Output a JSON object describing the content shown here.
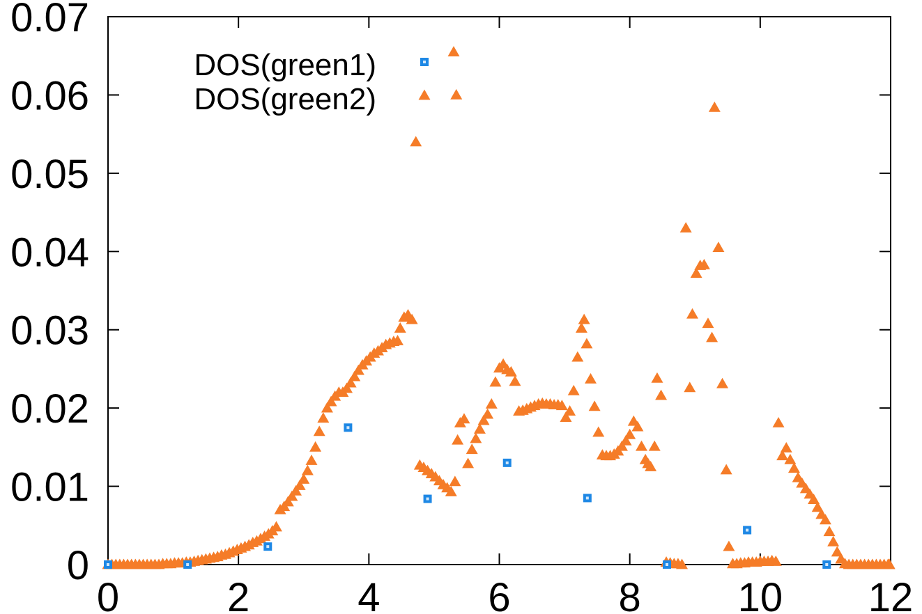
{
  "chart_data": {
    "type": "scatter",
    "title": "",
    "xlabel": "",
    "ylabel": "",
    "xlim": [
      0,
      12
    ],
    "ylim": [
      0,
      0.07
    ],
    "x_ticks": [
      "0",
      "2",
      "4",
      "6",
      "8",
      "10",
      "12"
    ],
    "y_ticks": [
      "0",
      "0.01",
      "0.02",
      "0.03",
      "0.04",
      "0.05",
      "0.06",
      "0.07"
    ],
    "x_tick_values": [
      0,
      2,
      4,
      6,
      8,
      10,
      12
    ],
    "y_tick_values": [
      0,
      0.01,
      0.02,
      0.03,
      0.04,
      0.05,
      0.06,
      0.07
    ],
    "grid": false,
    "legend_position": "top-left",
    "series": [
      {
        "name": "DOS(green1)",
        "marker": "square",
        "color": "#1e88e5",
        "points": [
          [
            0.0,
            0.0
          ],
          [
            1.22,
            0.0
          ],
          [
            2.45,
            0.0023
          ],
          [
            3.68,
            0.0175
          ],
          [
            4.9,
            0.0084
          ],
          [
            6.12,
            0.013
          ],
          [
            7.35,
            0.0085
          ],
          [
            8.57,
            0.0
          ],
          [
            9.8,
            0.0044
          ],
          [
            11.02,
            0.0
          ]
        ]
      },
      {
        "name": "DOS(green2)",
        "marker": "triangle",
        "color": "#f57c28",
        "points": [
          [
            0.0,
            0.0
          ],
          [
            0.06,
            0.0
          ],
          [
            0.12,
            0.0
          ],
          [
            0.18,
            0.0
          ],
          [
            0.24,
            0.0
          ],
          [
            0.3,
            0.0
          ],
          [
            0.36,
            0.0
          ],
          [
            0.42,
            0.0
          ],
          [
            0.48,
            0.0
          ],
          [
            0.54,
            0.0
          ],
          [
            0.6,
            0.0
          ],
          [
            0.66,
            0.0
          ],
          [
            0.72,
            0.0
          ],
          [
            0.78,
            0.0
          ],
          [
            0.84,
            0.0001
          ],
          [
            0.9,
            0.0001
          ],
          [
            0.96,
            0.0001
          ],
          [
            1.02,
            0.0002
          ],
          [
            1.08,
            0.0002
          ],
          [
            1.14,
            0.0002
          ],
          [
            1.2,
            0.0003
          ],
          [
            1.26,
            0.0003
          ],
          [
            1.32,
            0.0004
          ],
          [
            1.38,
            0.0005
          ],
          [
            1.44,
            0.0006
          ],
          [
            1.5,
            0.0007
          ],
          [
            1.56,
            0.0008
          ],
          [
            1.62,
            0.0009
          ],
          [
            1.68,
            0.001
          ],
          [
            1.74,
            0.0012
          ],
          [
            1.8,
            0.0013
          ],
          [
            1.86,
            0.0015
          ],
          [
            1.92,
            0.0017
          ],
          [
            1.98,
            0.0019
          ],
          [
            2.04,
            0.0021
          ],
          [
            2.1,
            0.0023
          ],
          [
            2.16,
            0.0025
          ],
          [
            2.22,
            0.0028
          ],
          [
            2.28,
            0.003
          ],
          [
            2.34,
            0.0033
          ],
          [
            2.4,
            0.0036
          ],
          [
            2.46,
            0.0039
          ],
          [
            2.52,
            0.0043
          ],
          [
            2.58,
            0.0048
          ],
          [
            2.64,
            0.007
          ],
          [
            2.7,
            0.0074
          ],
          [
            2.76,
            0.008
          ],
          [
            2.82,
            0.0087
          ],
          [
            2.88,
            0.0094
          ],
          [
            2.94,
            0.0101
          ],
          [
            3.0,
            0.0109
          ],
          [
            3.06,
            0.012
          ],
          [
            3.12,
            0.0133
          ],
          [
            3.18,
            0.015
          ],
          [
            3.24,
            0.017
          ],
          [
            3.3,
            0.0187
          ],
          [
            3.36,
            0.02
          ],
          [
            3.42,
            0.0208
          ],
          [
            3.48,
            0.0215
          ],
          [
            3.54,
            0.022
          ],
          [
            3.6,
            0.022
          ],
          [
            3.66,
            0.0225
          ],
          [
            3.72,
            0.0232
          ],
          [
            3.78,
            0.024
          ],
          [
            3.84,
            0.0248
          ],
          [
            3.9,
            0.0255
          ],
          [
            3.96,
            0.026
          ],
          [
            4.02,
            0.0265
          ],
          [
            4.08,
            0.027
          ],
          [
            4.14,
            0.0273
          ],
          [
            4.2,
            0.0277
          ],
          [
            4.26,
            0.0281
          ],
          [
            4.32,
            0.0283
          ],
          [
            4.38,
            0.0285
          ],
          [
            4.44,
            0.0286
          ],
          [
            4.48,
            0.0302
          ],
          [
            4.54,
            0.0316
          ],
          [
            4.6,
            0.0319
          ],
          [
            4.66,
            0.0313
          ],
          [
            4.72,
            0.054
          ],
          [
            4.78,
            0.0127
          ],
          [
            4.84,
            0.0124
          ],
          [
            4.9,
            0.012
          ],
          [
            4.96,
            0.0116
          ],
          [
            5.02,
            0.0112
          ],
          [
            5.08,
            0.0107
          ],
          [
            5.14,
            0.0102
          ],
          [
            5.2,
            0.0098
          ],
          [
            5.26,
            0.0093
          ],
          [
            5.3,
            0.0655
          ],
          [
            5.34,
            0.06
          ],
          [
            5.32,
            0.0106
          ],
          [
            5.36,
            0.0159
          ],
          [
            5.4,
            0.0181
          ],
          [
            5.46,
            0.0186
          ],
          [
            5.52,
            0.0129
          ],
          [
            5.58,
            0.0147
          ],
          [
            5.64,
            0.0161
          ],
          [
            5.7,
            0.0173
          ],
          [
            5.76,
            0.0184
          ],
          [
            5.82,
            0.0192
          ],
          [
            5.88,
            0.0205
          ],
          [
            5.94,
            0.0233
          ],
          [
            6.0,
            0.0251
          ],
          [
            6.06,
            0.0256
          ],
          [
            6.12,
            0.0249
          ],
          [
            6.18,
            0.0246
          ],
          [
            6.24,
            0.0234
          ],
          [
            6.3,
            0.0196
          ],
          [
            6.36,
            0.0197
          ],
          [
            6.42,
            0.0199
          ],
          [
            6.48,
            0.0201
          ],
          [
            6.54,
            0.0203
          ],
          [
            6.6,
            0.0205
          ],
          [
            6.66,
            0.0206
          ],
          [
            6.72,
            0.0205
          ],
          [
            6.78,
            0.0205
          ],
          [
            6.84,
            0.0204
          ],
          [
            6.9,
            0.0204
          ],
          [
            6.96,
            0.0203
          ],
          [
            7.02,
            0.0188
          ],
          [
            7.08,
            0.0196
          ],
          [
            7.14,
            0.0222
          ],
          [
            7.2,
            0.0265
          ],
          [
            7.26,
            0.0302
          ],
          [
            7.3,
            0.0313
          ],
          [
            7.34,
            0.0282
          ],
          [
            7.4,
            0.0237
          ],
          [
            7.46,
            0.0202
          ],
          [
            7.52,
            0.0169
          ],
          [
            7.58,
            0.014
          ],
          [
            7.64,
            0.0139
          ],
          [
            7.7,
            0.0139
          ],
          [
            7.76,
            0.0141
          ],
          [
            7.82,
            0.0145
          ],
          [
            7.88,
            0.0151
          ],
          [
            7.94,
            0.0158
          ],
          [
            8.0,
            0.0166
          ],
          [
            8.06,
            0.0183
          ],
          [
            8.12,
            0.0176
          ],
          [
            8.18,
            0.0151
          ],
          [
            8.24,
            0.0134
          ],
          [
            8.28,
            0.0129
          ],
          [
            8.32,
            0.0125
          ],
          [
            8.38,
            0.0151
          ],
          [
            8.42,
            0.0238
          ],
          [
            8.48,
            0.0216
          ],
          [
            8.56,
            0.0003
          ],
          [
            8.62,
            0.0002
          ],
          [
            8.68,
            0.0001
          ],
          [
            8.74,
            0.0001
          ],
          [
            8.8,
            0.0
          ],
          [
            8.86,
            0.043
          ],
          [
            8.92,
            0.0226
          ],
          [
            8.96,
            0.032
          ],
          [
            9.02,
            0.0372
          ],
          [
            9.08,
            0.0382
          ],
          [
            9.14,
            0.0383
          ],
          [
            9.2,
            0.0308
          ],
          [
            9.26,
            0.029
          ],
          [
            9.3,
            0.0584
          ],
          [
            9.36,
            0.0405
          ],
          [
            9.42,
            0.0231
          ],
          [
            9.48,
            0.0121
          ],
          [
            9.52,
            0.0023
          ],
          [
            9.58,
            0.0001
          ],
          [
            9.64,
            0.0001
          ],
          [
            9.7,
            0.0002
          ],
          [
            9.76,
            0.0002
          ],
          [
            9.82,
            0.0003
          ],
          [
            9.88,
            0.0003
          ],
          [
            9.94,
            0.0003
          ],
          [
            10.0,
            0.0004
          ],
          [
            10.06,
            0.0004
          ],
          [
            10.12,
            0.0004
          ],
          [
            10.18,
            0.0005
          ],
          [
            10.24,
            0.0004
          ],
          [
            10.28,
            0.0181
          ],
          [
            10.34,
            0.0139
          ],
          [
            10.4,
            0.0149
          ],
          [
            10.46,
            0.0134
          ],
          [
            10.52,
            0.0123
          ],
          [
            10.58,
            0.0111
          ],
          [
            10.64,
            0.0104
          ],
          [
            10.7,
            0.0097
          ],
          [
            10.76,
            0.009
          ],
          [
            10.82,
            0.0083
          ],
          [
            10.88,
            0.0073
          ],
          [
            10.94,
            0.0064
          ],
          [
            11.0,
            0.0057
          ],
          [
            11.06,
            0.0042
          ],
          [
            11.12,
            0.0029
          ],
          [
            11.18,
            0.0016
          ],
          [
            11.24,
            0.0007
          ],
          [
            11.3,
            0.0001
          ],
          [
            11.36,
            0.0
          ],
          [
            11.42,
            0.0
          ],
          [
            11.48,
            0.0
          ],
          [
            11.54,
            0.0
          ],
          [
            11.6,
            0.0
          ],
          [
            11.66,
            0.0
          ],
          [
            11.72,
            0.0
          ],
          [
            11.78,
            0.0
          ],
          [
            11.84,
            0.0
          ],
          [
            11.9,
            0.0
          ],
          [
            11.96,
            0.0
          ],
          [
            12.02,
            0.0
          ],
          [
            12.08,
            0.0
          ],
          [
            12.14,
            0.0
          ],
          [
            12.2,
            0.0
          ],
          [
            12.26,
            0.0
          ],
          [
            12.32,
            0.0
          ]
        ]
      }
    ]
  }
}
